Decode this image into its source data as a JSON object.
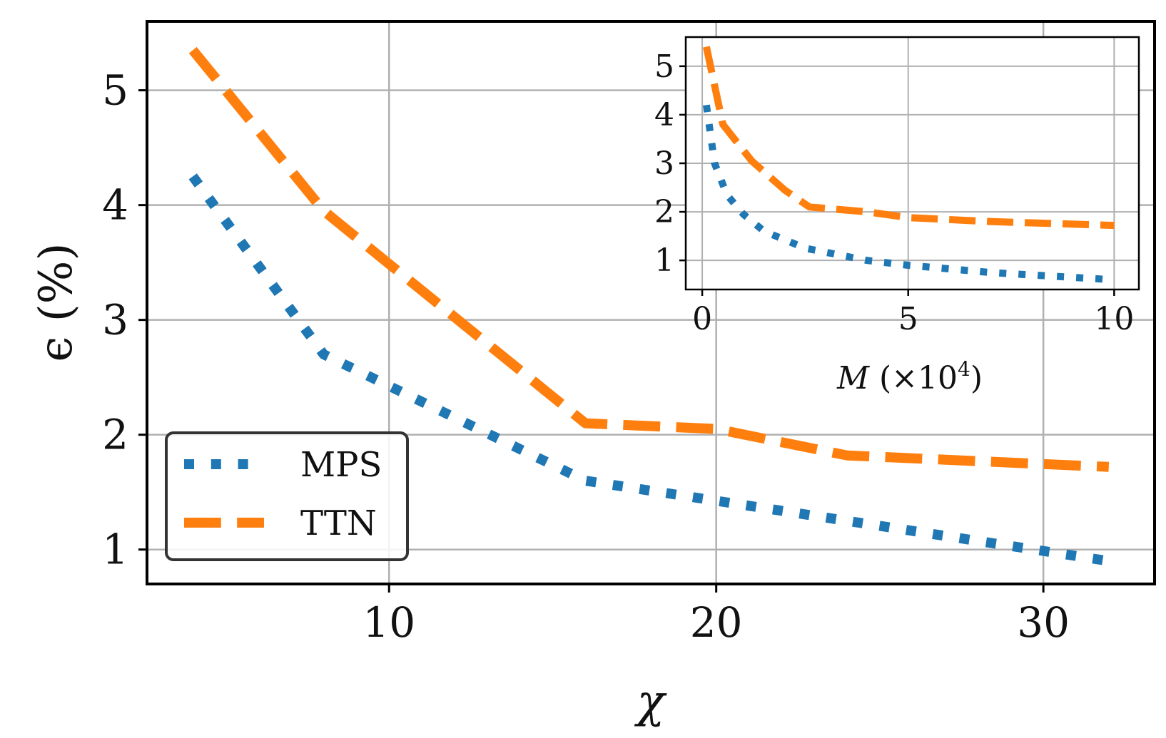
{
  "chart_data": [
    {
      "type": "line",
      "xlabel": "χ",
      "ylabel": "ϵ (%)",
      "xlim": [
        2.6,
        33.4
      ],
      "ylim": [
        0.7,
        5.6
      ],
      "xticks": [
        10,
        20,
        30
      ],
      "yticks": [
        1,
        2,
        3,
        4,
        5
      ],
      "grid": true,
      "legend": "lower-left",
      "series": [
        {
          "name": "MPS",
          "color": "#1f77b4",
          "style": "dotted",
          "x": [
            4,
            8,
            16,
            32
          ],
          "y": [
            4.25,
            2.7,
            1.6,
            0.9
          ]
        },
        {
          "name": "TTN",
          "color": "#ff7f0e",
          "style": "dashed",
          "x": [
            4,
            8,
            16,
            20,
            24,
            32
          ],
          "y": [
            5.35,
            3.95,
            2.1,
            2.05,
            1.82,
            1.72
          ]
        }
      ]
    },
    {
      "type": "line",
      "inset": true,
      "xlabel_var": "M",
      "xlabel_rest": " (×10",
      "xlabel_exp": "4",
      "xlabel_close": ")",
      "xlim": [
        -0.4,
        10.6
      ],
      "ylim": [
        0.4,
        5.6
      ],
      "xticks": [
        0,
        5,
        10
      ],
      "yticks": [
        1,
        2,
        3,
        4,
        5
      ],
      "grid": true,
      "series": [
        {
          "name": "MPS",
          "color": "#1f77b4",
          "style": "dotted",
          "x": [
            0.1,
            0.3,
            0.6,
            1.0,
            1.5,
            2.5,
            4,
            5,
            7,
            10
          ],
          "y": [
            4.2,
            3.0,
            2.35,
            1.95,
            1.6,
            1.25,
            1.0,
            0.9,
            0.75,
            0.6
          ]
        },
        {
          "name": "TTN",
          "color": "#ff7f0e",
          "style": "dashed",
          "x": [
            0.1,
            0.5,
            1.2,
            2.0,
            2.6,
            4,
            5,
            7,
            10
          ],
          "y": [
            5.4,
            3.8,
            3.05,
            2.45,
            2.1,
            2.0,
            1.88,
            1.8,
            1.72
          ]
        }
      ]
    }
  ]
}
